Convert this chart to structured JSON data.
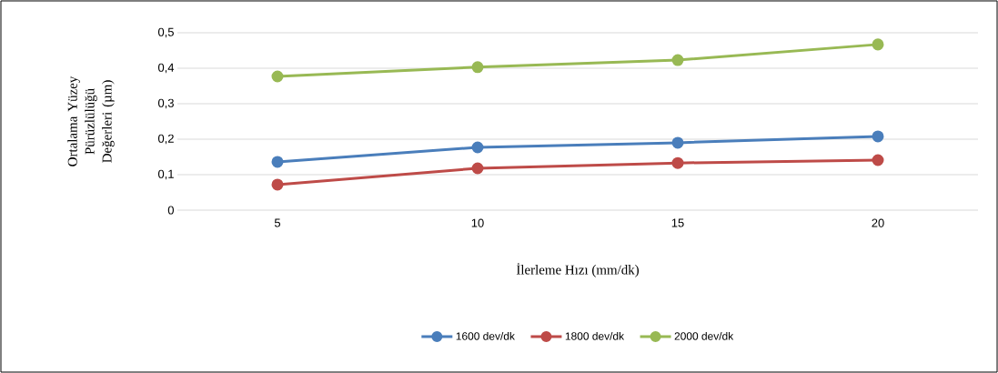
{
  "chart_data": {
    "type": "line",
    "xlabel": "İlerleme Hızı (mm/dk)",
    "ylabel": "Ortalama Yüzey Pürüzlülüğü Değerleri (µm)",
    "categories": [
      "5",
      "10",
      "15",
      "20"
    ],
    "series": [
      {
        "name": "1600 dev/dk",
        "color": "#4a7ebb",
        "values": [
          0.136,
          0.177,
          0.19,
          0.208
        ]
      },
      {
        "name": "1800 dev/dk",
        "color": "#be4b48",
        "values": [
          0.072,
          0.118,
          0.133,
          0.141
        ]
      },
      {
        "name": "2000 dev/dk",
        "color": "#98b954",
        "values": [
          0.377,
          0.403,
          0.423,
          0.467
        ]
      }
    ],
    "ylim": [
      0,
      0.5
    ],
    "yticks": [
      {
        "value": 0,
        "label": "0"
      },
      {
        "value": 0.1,
        "label": "0,1"
      },
      {
        "value": 0.2,
        "label": "0,2"
      },
      {
        "value": 0.3,
        "label": "0,3"
      },
      {
        "value": 0.4,
        "label": "0,4"
      },
      {
        "value": 0.5,
        "label": "0,5"
      }
    ],
    "grid": "y",
    "legend": "bottom",
    "marker": "circle",
    "line_style": "solid"
  }
}
